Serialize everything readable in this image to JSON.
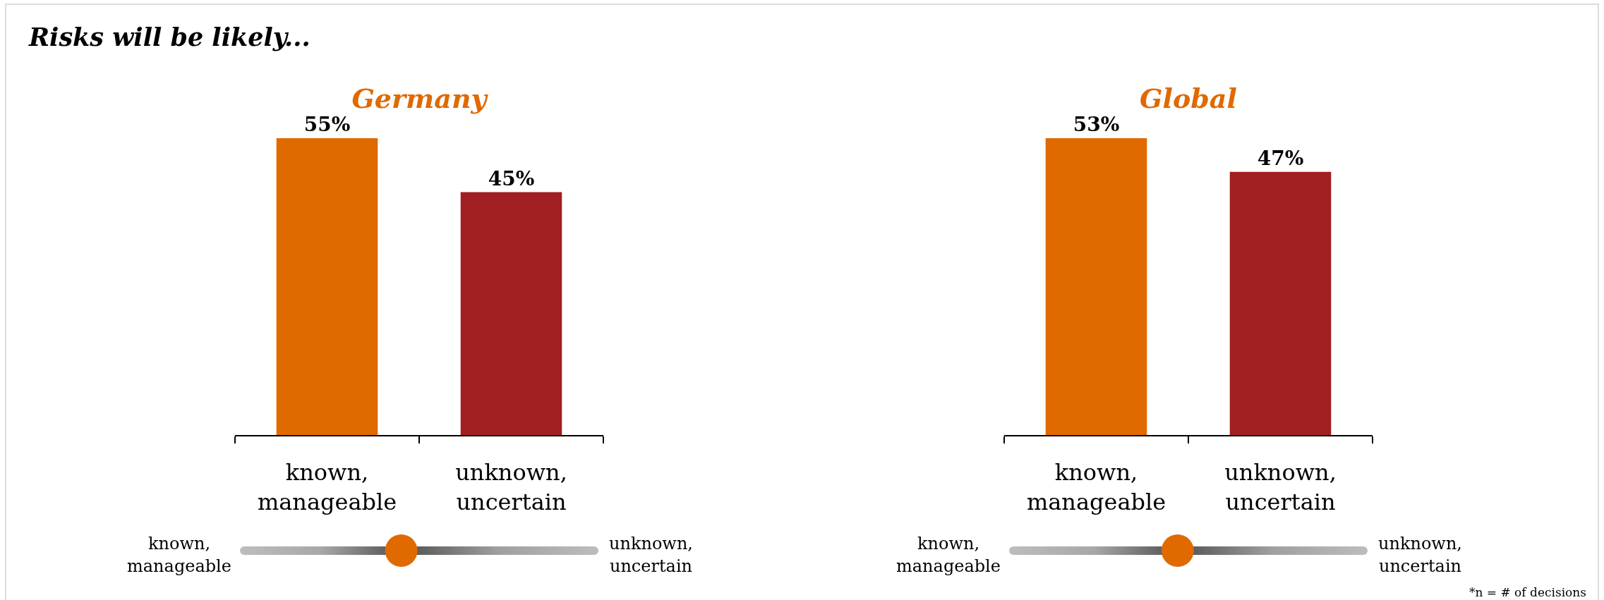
{
  "chart_data": [
    {
      "type": "other",
      "title": "Risks will be likely...",
      "annotations": [
        "*n = # of decisions"
      ]
    },
    {
      "type": "bar",
      "title": "Germany",
      "categories": [
        "known, manageable",
        "unknown, uncertain"
      ],
      "values": [
        55,
        45
      ],
      "colors": [
        "#e06900",
        "#a11f22"
      ],
      "value_labels": [
        "55%",
        "45%"
      ],
      "annotations": [
        "known, manageable",
        "unknown, uncertain"
      ]
    },
    {
      "type": "bar",
      "title": "Global",
      "categories": [
        "known, manageable",
        "unknown, uncertain"
      ],
      "values": [
        53,
        47
      ],
      "colors": [
        "#e06900",
        "#a11f22"
      ],
      "value_labels": [
        "53%",
        "47%"
      ],
      "annotations": [
        "known, manageable",
        "unknown, uncertain"
      ]
    }
  ]
}
